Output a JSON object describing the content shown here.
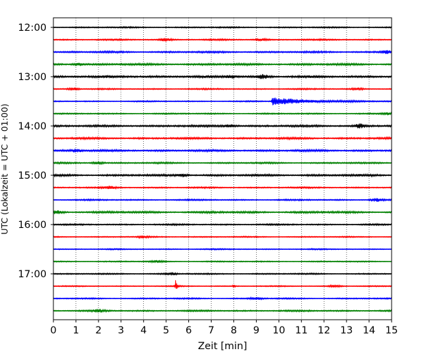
{
  "chart_data": {
    "type": "line",
    "title": "",
    "xlabel": "Zeit  [min]",
    "ylabel": "UTC (Lokalzeit = UTC + 01:00)",
    "xlim": [
      0,
      15
    ],
    "x_ticks": [
      "0",
      "1",
      "2",
      "3",
      "4",
      "5",
      "6",
      "7",
      "8",
      "9",
      "10",
      "11",
      "12",
      "13",
      "14",
      "15"
    ],
    "y_tick_labels": [
      "12:00",
      "13:00",
      "14:00",
      "15:00",
      "16:00",
      "17:00"
    ],
    "trace_interval_min": 15,
    "grid": "vertical dotted lines at each minute",
    "trace_colors": [
      "#000000",
      "#ff0000",
      "#0000ff",
      "#008000"
    ],
    "traces": [
      {
        "start": "12:00",
        "color": "#000000",
        "amplitude": 1.0,
        "events": []
      },
      {
        "start": "12:15",
        "color": "#ff0000",
        "amplitude": 1.1,
        "events": [
          {
            "t": 5.0,
            "a": 2.0
          },
          {
            "t": 9.2,
            "a": 1.6
          }
        ]
      },
      {
        "start": "12:30",
        "color": "#0000ff",
        "amplitude": 1.4,
        "events": [
          {
            "t": 14.8,
            "a": 2.2
          }
        ]
      },
      {
        "start": "12:45",
        "color": "#008000",
        "amplitude": 1.6,
        "events": [
          {
            "t": 1.1,
            "a": 1.8
          }
        ]
      },
      {
        "start": "13:00",
        "color": "#000000",
        "amplitude": 1.8,
        "events": [
          {
            "t": 9.3,
            "a": 2.6
          },
          {
            "t": 7.9,
            "a": 1.8
          }
        ]
      },
      {
        "start": "13:15",
        "color": "#ff0000",
        "amplitude": 1.0,
        "events": [
          {
            "t": 0.9,
            "a": 2.0
          },
          {
            "t": 13.5,
            "a": 1.5
          }
        ]
      },
      {
        "start": "13:30",
        "color": "#0000ff",
        "amplitude": 0.9,
        "events": [
          {
            "t": 9.7,
            "a": 5.5,
            "decay": 1.5
          }
        ]
      },
      {
        "start": "13:45",
        "color": "#008000",
        "amplitude": 1.0,
        "events": [
          {
            "t": 14.8,
            "a": 1.6
          }
        ]
      },
      {
        "start": "14:00",
        "color": "#000000",
        "amplitude": 1.6,
        "events": [
          {
            "t": 7.8,
            "a": 2.0
          },
          {
            "t": 13.6,
            "a": 2.4
          }
        ]
      },
      {
        "start": "14:15",
        "color": "#ff0000",
        "amplitude": 1.5,
        "events": []
      },
      {
        "start": "14:30",
        "color": "#0000ff",
        "amplitude": 1.6,
        "events": [
          {
            "t": 1.0,
            "a": 2.0
          }
        ]
      },
      {
        "start": "14:45",
        "color": "#008000",
        "amplitude": 1.2,
        "events": [
          {
            "t": 2.0,
            "a": 2.0
          }
        ]
      },
      {
        "start": "15:00",
        "color": "#000000",
        "amplitude": 1.6,
        "events": [
          {
            "t": 5.7,
            "a": 2.0
          }
        ]
      },
      {
        "start": "15:15",
        "color": "#ff0000",
        "amplitude": 1.1,
        "events": [
          {
            "t": 2.5,
            "a": 1.6
          }
        ]
      },
      {
        "start": "15:30",
        "color": "#0000ff",
        "amplitude": 1.1,
        "events": [
          {
            "t": 14.3,
            "a": 2.2
          }
        ]
      },
      {
        "start": "15:45",
        "color": "#008000",
        "amplitude": 1.6,
        "events": [
          {
            "t": 0.2,
            "a": 2.0
          }
        ]
      },
      {
        "start": "16:00",
        "color": "#000000",
        "amplitude": 1.1,
        "events": []
      },
      {
        "start": "16:15",
        "color": "#ff0000",
        "amplitude": 0.9,
        "events": [
          {
            "t": 4.0,
            "a": 1.4
          }
        ]
      },
      {
        "start": "16:30",
        "color": "#0000ff",
        "amplitude": 0.9,
        "events": []
      },
      {
        "start": "16:45",
        "color": "#008000",
        "amplitude": 0.9,
        "events": [
          {
            "t": 4.6,
            "a": 1.4
          }
        ]
      },
      {
        "start": "17:00",
        "color": "#000000",
        "amplitude": 1.0,
        "events": [
          {
            "t": 5.2,
            "a": 1.6
          }
        ]
      },
      {
        "start": "17:15",
        "color": "#ff0000",
        "amplitude": 0.8,
        "events": [
          {
            "t": 5.42,
            "a": 9.0,
            "decay": 0.06
          },
          {
            "t": 7.98,
            "a": 4.0,
            "decay": 0.05
          },
          {
            "t": 12.5,
            "a": 1.6
          }
        ]
      },
      {
        "start": "17:30",
        "color": "#0000ff",
        "amplitude": 1.0,
        "events": [
          {
            "t": 9.0,
            "a": 1.6
          }
        ]
      },
      {
        "start": "17:45",
        "color": "#008000",
        "amplitude": 1.2,
        "events": [
          {
            "t": 2.0,
            "a": 1.6
          }
        ]
      }
    ]
  }
}
